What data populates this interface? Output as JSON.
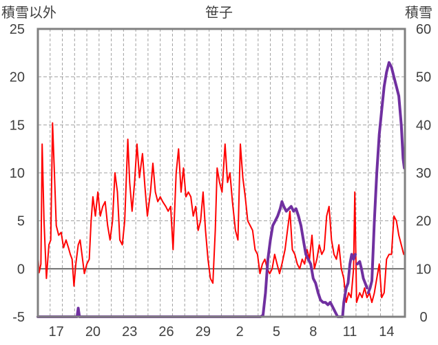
{
  "chart_data": {
    "type": "line",
    "title": "笹子",
    "y_left_label": "積雪以外",
    "y_right_label": "積雪",
    "y_left_ticks": [
      "25",
      "20",
      "15",
      "10",
      "5",
      "0",
      "-5"
    ],
    "y_right_ticks": [
      "60",
      "50",
      "40",
      "30",
      "20",
      "10",
      "0"
    ],
    "x_ticks": [
      "17",
      "20",
      "23",
      "26",
      "29",
      "2",
      "5",
      "8",
      "11",
      "14"
    ],
    "ylim_left": [
      -5,
      25
    ],
    "ylim_right": [
      0,
      60
    ],
    "xlim": [
      0,
      30
    ],
    "x_tick_positions": [
      1.5,
      4.5,
      7.5,
      10.5,
      13.5,
      16.5,
      19.5,
      22.5,
      25.5,
      28.5
    ],
    "grid": "dashed",
    "colors": {
      "temperature": "#ff0000",
      "snow_depth": "#7030a0",
      "frame": "#808080",
      "grid": "#a0a0a0",
      "zero_line": "#404040"
    },
    "series": [
      {
        "axis": "left",
        "color": "#ff0000",
        "points": [
          [
            0.0,
            1.5
          ],
          [
            0.1,
            -0.4
          ],
          [
            0.25,
            0.5
          ],
          [
            0.35,
            13.0
          ],
          [
            0.5,
            5.0
          ],
          [
            0.7,
            -1.0
          ],
          [
            0.9,
            2.5
          ],
          [
            1.05,
            3.0
          ],
          [
            1.2,
            15.2
          ],
          [
            1.35,
            10.0
          ],
          [
            1.5,
            4.5
          ],
          [
            1.7,
            3.5
          ],
          [
            1.9,
            3.8
          ],
          [
            2.1,
            2.2
          ],
          [
            2.3,
            3.0
          ],
          [
            2.5,
            2.2
          ],
          [
            2.65,
            1.5
          ],
          [
            2.8,
            1.0
          ],
          [
            2.95,
            -1.8
          ],
          [
            3.1,
            0.5
          ],
          [
            3.3,
            2.5
          ],
          [
            3.45,
            3.0
          ],
          [
            3.6,
            1.5
          ],
          [
            3.8,
            -0.5
          ],
          [
            4.0,
            0.5
          ],
          [
            4.2,
            1.0
          ],
          [
            4.35,
            5.0
          ],
          [
            4.5,
            7.5
          ],
          [
            4.7,
            5.5
          ],
          [
            4.9,
            8.0
          ],
          [
            5.1,
            5.5
          ],
          [
            5.3,
            6.5
          ],
          [
            5.5,
            7.0
          ],
          [
            5.7,
            4.5
          ],
          [
            5.9,
            3.0
          ],
          [
            6.1,
            5.0
          ],
          [
            6.3,
            10.0
          ],
          [
            6.5,
            8.0
          ],
          [
            6.7,
            3.0
          ],
          [
            6.9,
            2.5
          ],
          [
            7.1,
            5.0
          ],
          [
            7.35,
            13.5
          ],
          [
            7.5,
            9.0
          ],
          [
            7.7,
            6.0
          ],
          [
            7.9,
            9.0
          ],
          [
            8.1,
            13.0
          ],
          [
            8.3,
            9.5
          ],
          [
            8.55,
            12.0
          ],
          [
            8.75,
            8.5
          ],
          [
            8.95,
            5.5
          ],
          [
            9.2,
            8.0
          ],
          [
            9.4,
            11.0
          ],
          [
            9.6,
            8.0
          ],
          [
            9.8,
            7.0
          ],
          [
            10.0,
            7.5
          ],
          [
            10.2,
            7.0
          ],
          [
            10.45,
            6.5
          ],
          [
            10.65,
            6.0
          ],
          [
            10.85,
            6.5
          ],
          [
            11.05,
            2.0
          ],
          [
            11.3,
            10.0
          ],
          [
            11.5,
            12.5
          ],
          [
            11.7,
            8.0
          ],
          [
            11.9,
            10.5
          ],
          [
            12.1,
            7.5
          ],
          [
            12.3,
            8.0
          ],
          [
            12.5,
            7.5
          ],
          [
            12.7,
            5.5
          ],
          [
            12.9,
            6.5
          ],
          [
            13.1,
            4.0
          ],
          [
            13.3,
            5.0
          ],
          [
            13.5,
            8.0
          ],
          [
            13.7,
            4.0
          ],
          [
            13.9,
            1.0
          ],
          [
            14.1,
            -1.0
          ],
          [
            14.3,
            -1.5
          ],
          [
            14.5,
            4.0
          ],
          [
            14.65,
            10.5
          ],
          [
            14.85,
            9.0
          ],
          [
            15.05,
            8.0
          ],
          [
            15.3,
            13.0
          ],
          [
            15.5,
            9.0
          ],
          [
            15.7,
            10.0
          ],
          [
            15.9,
            7.0
          ],
          [
            16.15,
            4.0
          ],
          [
            16.35,
            3.0
          ],
          [
            16.55,
            13.0
          ],
          [
            16.75,
            9.5
          ],
          [
            16.95,
            7.5
          ],
          [
            17.15,
            5.0
          ],
          [
            17.35,
            4.5
          ],
          [
            17.55,
            4.0
          ],
          [
            17.75,
            2.0
          ],
          [
            17.95,
            1.5
          ],
          [
            18.15,
            -0.5
          ],
          [
            18.35,
            0.5
          ],
          [
            18.55,
            1.0
          ],
          [
            18.75,
            0.0
          ],
          [
            18.95,
            -0.5
          ],
          [
            19.15,
            0.0
          ],
          [
            19.35,
            1.5
          ],
          [
            19.55,
            0.5
          ],
          [
            19.75,
            -0.5
          ],
          [
            19.95,
            0.5
          ],
          [
            20.2,
            2.0
          ],
          [
            20.4,
            4.0
          ],
          [
            20.6,
            6.0
          ],
          [
            20.8,
            2.0
          ],
          [
            21.0,
            1.5
          ],
          [
            21.2,
            0.5
          ],
          [
            21.4,
            0.0
          ],
          [
            21.6,
            1.0
          ],
          [
            21.8,
            0.5
          ],
          [
            22.0,
            2.0
          ],
          [
            22.2,
            1.0
          ],
          [
            22.4,
            3.5
          ],
          [
            22.6,
            0.0
          ],
          [
            22.8,
            1.0
          ],
          [
            23.0,
            2.5
          ],
          [
            23.2,
            1.5
          ],
          [
            23.4,
            2.0
          ],
          [
            23.6,
            5.5
          ],
          [
            23.8,
            6.5
          ],
          [
            24.0,
            3.0
          ],
          [
            24.2,
            1.5
          ],
          [
            24.4,
            1.0
          ],
          [
            24.6,
            2.5
          ],
          [
            24.8,
            0.0
          ],
          [
            25.0,
            -1.0
          ],
          [
            25.2,
            -3.5
          ],
          [
            25.4,
            -2.5
          ],
          [
            25.6,
            -3.0
          ],
          [
            25.8,
            0.0
          ],
          [
            25.9,
            8.0
          ],
          [
            26.05,
            -3.5
          ],
          [
            26.3,
            -2.5
          ],
          [
            26.5,
            -3.0
          ],
          [
            26.7,
            -2.0
          ],
          [
            26.9,
            -3.0
          ],
          [
            27.1,
            -2.5
          ],
          [
            27.3,
            -3.5
          ],
          [
            27.5,
            -2.5
          ],
          [
            27.7,
            -1.0
          ],
          [
            27.9,
            0.5
          ],
          [
            28.1,
            -3.0
          ],
          [
            28.3,
            -2.5
          ],
          [
            28.5,
            1.0
          ],
          [
            28.7,
            1.5
          ],
          [
            28.9,
            1.5
          ],
          [
            29.1,
            5.5
          ],
          [
            29.3,
            5.0
          ],
          [
            29.5,
            3.5
          ],
          [
            29.7,
            2.5
          ],
          [
            29.9,
            1.5
          ]
        ]
      },
      {
        "axis": "right",
        "color": "#7030a0",
        "points": [
          [
            0.0,
            0.0
          ],
          [
            3.2,
            0.0
          ],
          [
            3.3,
            1.8
          ],
          [
            3.4,
            0.0
          ],
          [
            18.2,
            0.0
          ],
          [
            18.4,
            0.3
          ],
          [
            18.6,
            5.0
          ],
          [
            18.8,
            12.0
          ],
          [
            19.0,
            16.0
          ],
          [
            19.2,
            19.0
          ],
          [
            19.4,
            20.0
          ],
          [
            19.6,
            21.0
          ],
          [
            19.8,
            22.5
          ],
          [
            19.95,
            24.0
          ],
          [
            20.1,
            23.0
          ],
          [
            20.3,
            22.0
          ],
          [
            20.5,
            22.5
          ],
          [
            20.7,
            23.0
          ],
          [
            20.9,
            22.0
          ],
          [
            21.1,
            22.5
          ],
          [
            21.3,
            21.0
          ],
          [
            21.5,
            19.0
          ],
          [
            21.7,
            16.0
          ],
          [
            21.9,
            13.0
          ],
          [
            22.1,
            12.0
          ],
          [
            22.3,
            11.0
          ],
          [
            22.5,
            8.0
          ],
          [
            22.7,
            7.0
          ],
          [
            22.9,
            5.0
          ],
          [
            23.1,
            3.5
          ],
          [
            23.3,
            3.0
          ],
          [
            23.5,
            3.0
          ],
          [
            23.7,
            2.5
          ],
          [
            23.9,
            3.0
          ],
          [
            24.1,
            2.0
          ],
          [
            24.3,
            1.0
          ],
          [
            24.5,
            0.0
          ],
          [
            24.9,
            0.0
          ],
          [
            25.0,
            3.0
          ],
          [
            25.2,
            6.0
          ],
          [
            25.35,
            7.0
          ],
          [
            25.5,
            11.0
          ],
          [
            25.65,
            13.0
          ],
          [
            25.8,
            12.0
          ],
          [
            25.95,
            13.0
          ]
        ]
      },
      {
        "axis": "right",
        "color": "#7030a0",
        "points": [
          [
            26.1,
            11.0
          ],
          [
            26.3,
            11.5
          ],
          [
            26.45,
            10.0
          ],
          [
            26.6,
            8.0
          ],
          [
            26.75,
            7.0
          ],
          [
            26.9,
            6.0
          ]
        ]
      },
      {
        "axis": "right",
        "color": "#7030a0",
        "points": [
          [
            27.0,
            5.0
          ],
          [
            27.15,
            6.0
          ],
          [
            27.3,
            7.5
          ],
          [
            27.5,
            20.0
          ],
          [
            27.7,
            30.0
          ],
          [
            27.9,
            38.0
          ],
          [
            28.1,
            43.0
          ],
          [
            28.3,
            48.0
          ],
          [
            28.5,
            51.0
          ],
          [
            28.7,
            53.0
          ],
          [
            28.9,
            52.0
          ],
          [
            29.1,
            50.0
          ],
          [
            29.3,
            48.0
          ],
          [
            29.5,
            46.0
          ],
          [
            29.7,
            40.0
          ],
          [
            29.85,
            33.0
          ],
          [
            29.95,
            31.0
          ]
        ]
      }
    ]
  }
}
